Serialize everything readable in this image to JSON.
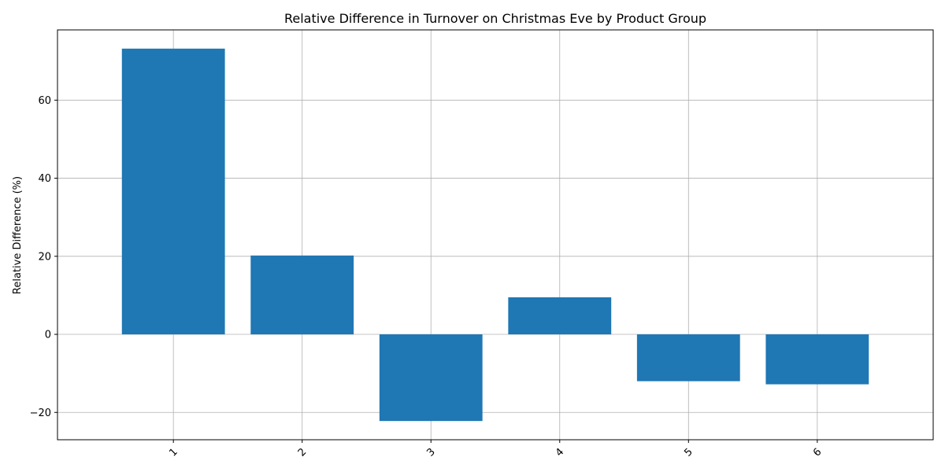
{
  "chart_data": {
    "type": "bar",
    "title": "Relative Difference in Turnover on Christmas Eve by Product Group",
    "xlabel": "",
    "ylabel": "Relative Difference (%)",
    "categories": [
      "1",
      "2",
      "3",
      "4",
      "5",
      "6"
    ],
    "values": [
      73.2,
      20.2,
      -22.2,
      9.5,
      -12.0,
      -12.8
    ],
    "ylim": [
      -27.0,
      78.0
    ],
    "yticks": [
      -20,
      0,
      20,
      40,
      60
    ],
    "ytick_labels": [
      "−20",
      "0",
      "20",
      "40",
      "60"
    ],
    "grid": true,
    "bar_color": "#1f77b4",
    "grid_color": "#b0b0b0"
  }
}
